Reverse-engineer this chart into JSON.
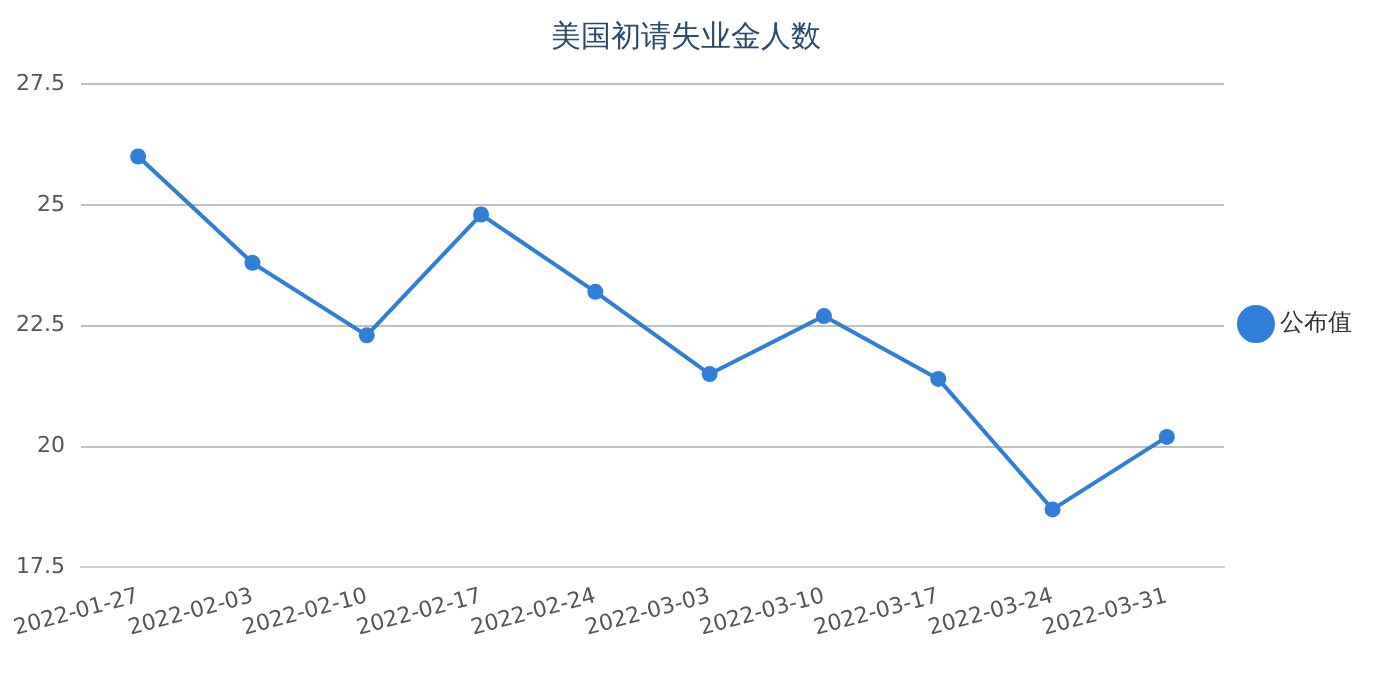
{
  "chart_data": {
    "type": "line",
    "title": "美国初请失业金人数",
    "categories": [
      "2022-01-27",
      "2022-02-03",
      "2022-02-10",
      "2022-02-17",
      "2022-02-24",
      "2022-03-03",
      "2022-03-10",
      "2022-03-17",
      "2022-03-24",
      "2022-03-31"
    ],
    "series": [
      {
        "name": "公布值",
        "color": "#2f7ed8",
        "values": [
          26.0,
          23.8,
          22.3,
          24.8,
          23.2,
          21.5,
          22.7,
          21.4,
          18.7,
          20.2
        ]
      }
    ],
    "ylim": [
      17.5,
      27.5
    ],
    "yticks": [
      17.5,
      20,
      22.5,
      25,
      27.5
    ],
    "grid": "y",
    "legend": "right",
    "marker": "circle",
    "line_style": "solid"
  }
}
